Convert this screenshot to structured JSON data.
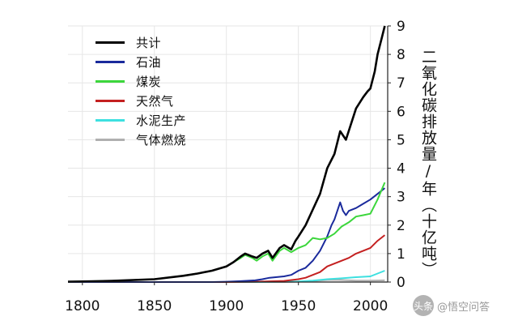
{
  "chart_data": {
    "type": "line",
    "title": "",
    "xlabel": "",
    "ylabel": "二氧化碳排放量/年（十亿吨）",
    "xlim": [
      1790,
      2012
    ],
    "ylim": [
      0,
      9
    ],
    "xticks": [
      1800,
      1850,
      1900,
      1950,
      2000
    ],
    "yticks": [
      0,
      1,
      2,
      3,
      4,
      5,
      6,
      7,
      8,
      9
    ],
    "legend_position": "top-left",
    "series": [
      {
        "name": "共计",
        "color": "#000000",
        "x": [
          1790,
          1800,
          1820,
          1850,
          1870,
          1880,
          1890,
          1900,
          1905,
          1910,
          1913,
          1918,
          1921,
          1925,
          1929,
          1932,
          1937,
          1940,
          1945,
          1948,
          1950,
          1955,
          1960,
          1965,
          1970,
          1975,
          1979,
          1983,
          1990,
          1995,
          1998,
          2000,
          2003,
          2005,
          2008,
          2010
        ],
        "values": [
          0.01,
          0.02,
          0.04,
          0.1,
          0.22,
          0.3,
          0.4,
          0.55,
          0.7,
          0.9,
          1.0,
          0.9,
          0.85,
          1.0,
          1.1,
          0.85,
          1.2,
          1.3,
          1.15,
          1.45,
          1.6,
          2.0,
          2.55,
          3.1,
          4.0,
          4.5,
          5.3,
          5.0,
          6.1,
          6.5,
          6.7,
          6.8,
          7.4,
          8.0,
          8.6,
          9.0
        ]
      },
      {
        "name": "石油",
        "color": "#1a2a9c",
        "x": [
          1790,
          1890,
          1900,
          1910,
          1920,
          1925,
          1930,
          1940,
          1945,
          1950,
          1955,
          1960,
          1965,
          1970,
          1973,
          1975,
          1979,
          1981,
          1983,
          1985,
          1990,
          1995,
          2000,
          2005,
          2010
        ],
        "values": [
          0,
          0,
          0.01,
          0.03,
          0.06,
          0.1,
          0.15,
          0.2,
          0.25,
          0.4,
          0.5,
          0.75,
          1.1,
          1.6,
          2.0,
          2.2,
          2.8,
          2.5,
          2.35,
          2.5,
          2.6,
          2.75,
          2.9,
          3.1,
          3.3
        ]
      },
      {
        "name": "煤炭",
        "color": "#3cd63c",
        "x": [
          1790,
          1800,
          1820,
          1850,
          1870,
          1880,
          1890,
          1900,
          1905,
          1910,
          1913,
          1918,
          1921,
          1925,
          1929,
          1932,
          1937,
          1940,
          1945,
          1950,
          1955,
          1960,
          1965,
          1970,
          1975,
          1980,
          1985,
          1990,
          1995,
          2000,
          2005,
          2010
        ],
        "values": [
          0.01,
          0.02,
          0.04,
          0.1,
          0.22,
          0.3,
          0.4,
          0.55,
          0.7,
          0.85,
          0.95,
          0.85,
          0.75,
          0.9,
          1.0,
          0.75,
          1.1,
          1.2,
          1.05,
          1.2,
          1.3,
          1.55,
          1.5,
          1.55,
          1.7,
          1.95,
          2.1,
          2.3,
          2.35,
          2.4,
          2.9,
          3.5
        ]
      },
      {
        "name": "天然气",
        "color": "#c42020",
        "x": [
          1790,
          1900,
          1920,
          1940,
          1950,
          1955,
          1960,
          1965,
          1970,
          1975,
          1980,
          1985,
          1990,
          1995,
          2000,
          2005,
          2010
        ],
        "values": [
          0,
          0,
          0.01,
          0.04,
          0.1,
          0.15,
          0.25,
          0.35,
          0.55,
          0.65,
          0.75,
          0.85,
          1.0,
          1.1,
          1.2,
          1.45,
          1.65
        ]
      },
      {
        "name": "水泥生产",
        "color": "#3ee0e0",
        "x": [
          1790,
          1920,
          1950,
          1960,
          1970,
          1980,
          1990,
          2000,
          2005,
          2010
        ],
        "values": [
          0,
          0,
          0.02,
          0.05,
          0.1,
          0.13,
          0.17,
          0.2,
          0.3,
          0.4
        ]
      },
      {
        "name": "气体燃烧",
        "color": "#b0b0b0",
        "x": [
          1790,
          1940,
          1950,
          1960,
          1970,
          1975,
          1980,
          1990,
          2000,
          2010
        ],
        "values": [
          0,
          0,
          0.01,
          0.03,
          0.07,
          0.08,
          0.07,
          0.05,
          0.05,
          0.06
        ]
      }
    ]
  },
  "watermark": {
    "icon": "toutiao-icon",
    "badge_text": "头条",
    "text": "@悟空问答"
  }
}
